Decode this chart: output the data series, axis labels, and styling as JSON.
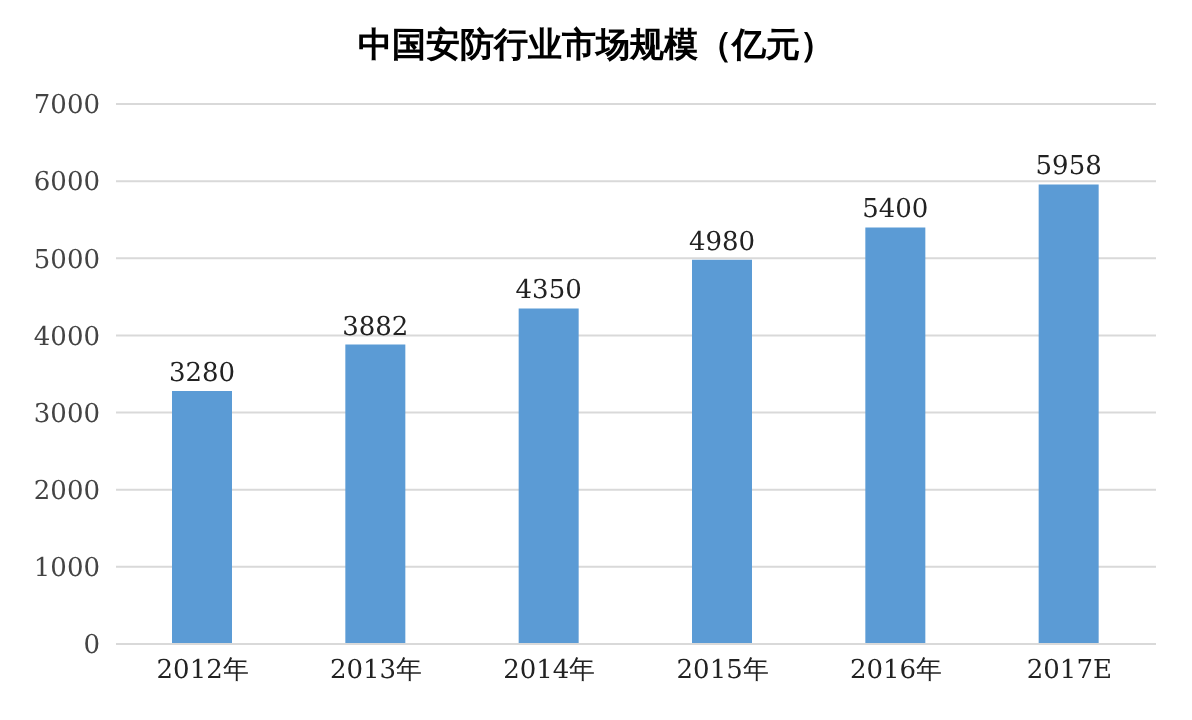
{
  "chart_data": {
    "type": "bar",
    "title": "中国安防行业市场规模（亿元）",
    "categories": [
      "2012年",
      "2013年",
      "2014年",
      "2015年",
      "2016年",
      "2017E"
    ],
    "values": [
      3280,
      3882,
      4350,
      4980,
      5400,
      5958
    ],
    "color": "#5b9bd5",
    "ylim": [
      0,
      7000
    ],
    "yticks": [
      0,
      1000,
      2000,
      3000,
      4000,
      5000,
      6000,
      7000
    ],
    "grid": "y",
    "data_labels": true
  }
}
